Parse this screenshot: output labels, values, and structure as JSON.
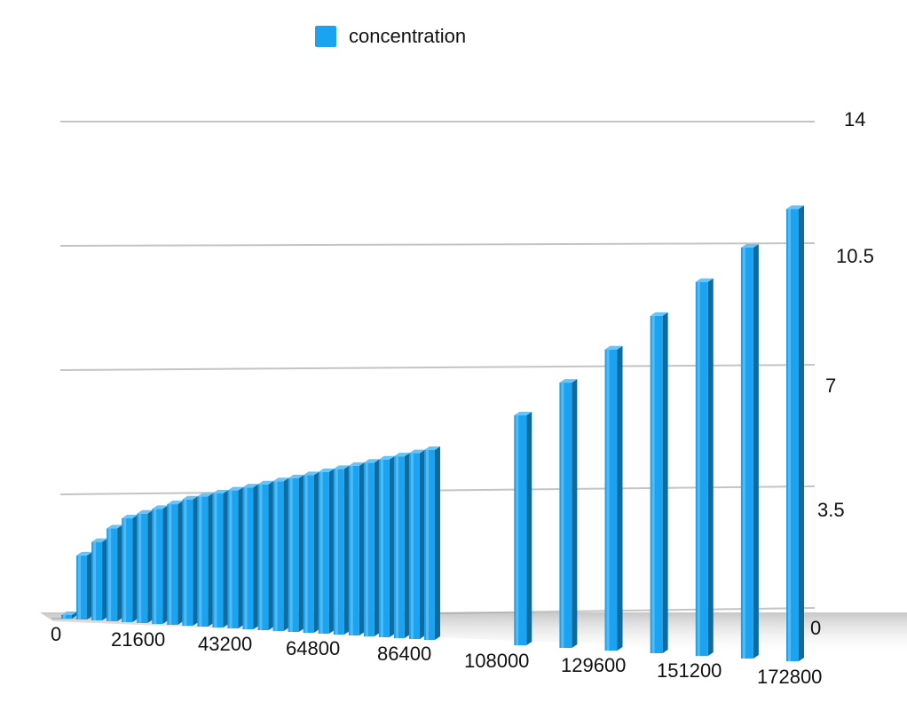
{
  "legend": {
    "label": "concentration",
    "color": "#1aa3f0"
  },
  "chart_data": {
    "type": "bar",
    "style": "3d",
    "series": [
      {
        "name": "concentration",
        "x": [
          0,
          3600,
          7200,
          10800,
          14400,
          18000,
          21600,
          25200,
          28800,
          32400,
          36000,
          39600,
          43200,
          46800,
          50400,
          54000,
          57600,
          61200,
          64800,
          68400,
          72000,
          75600,
          79200,
          82800,
          86400,
          108000,
          118800,
          129600,
          140400,
          151200,
          162000,
          172800
        ],
        "values": [
          0,
          1.8,
          2.2,
          2.6,
          2.9,
          3.05,
          3.2,
          3.35,
          3.5,
          3.6,
          3.7,
          3.8,
          3.9,
          4.0,
          4.1,
          4.2,
          4.3,
          4.4,
          4.5,
          4.6,
          4.7,
          4.8,
          4.9,
          5.0,
          5.1,
          6.1,
          7.0,
          7.9,
          8.8,
          9.7,
          10.6,
          11.6
        ]
      }
    ],
    "x_tick_labels": [
      "0",
      "21600",
      "43200",
      "64800",
      "86400",
      "108000",
      "129600",
      "151200",
      "172800"
    ],
    "y_tick_labels": [
      "0",
      "3.5",
      "7",
      "10.5",
      "14"
    ],
    "ylim": [
      0,
      14
    ],
    "grid": true,
    "legend_position": "top"
  }
}
